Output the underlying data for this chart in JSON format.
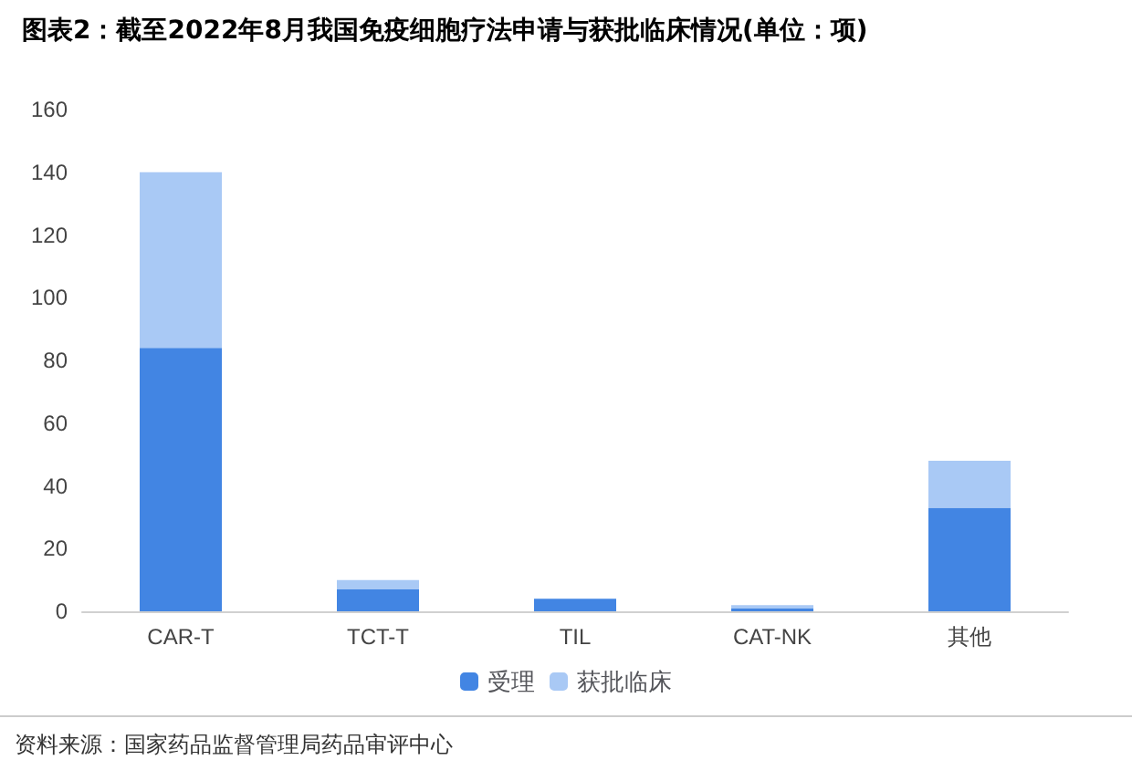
{
  "chart_data": {
    "type": "bar",
    "title": "图表2：截至2022年8月我国免疫细胞疗法申请与获批临床情况(单位：项)",
    "categories": [
      "CAR-T",
      "TCT-T",
      "TIL",
      "CAT-NK",
      "其他"
    ],
    "series": [
      {
        "name": "受理",
        "color": "#4285e3",
        "values": [
          84,
          7,
          4,
          1,
          33
        ]
      },
      {
        "name": "获批临床",
        "color": "#a9c9f5",
        "values": [
          56,
          3,
          0,
          1,
          15
        ]
      }
    ],
    "stacked": true,
    "ylim": [
      0,
      160
    ],
    "yticks": [
      0,
      20,
      40,
      60,
      80,
      100,
      120,
      140,
      160
    ],
    "grid": false,
    "legend": "bottom",
    "annotations": [
      "资料来源：国家药品监督管理局药品审评中心"
    ]
  }
}
